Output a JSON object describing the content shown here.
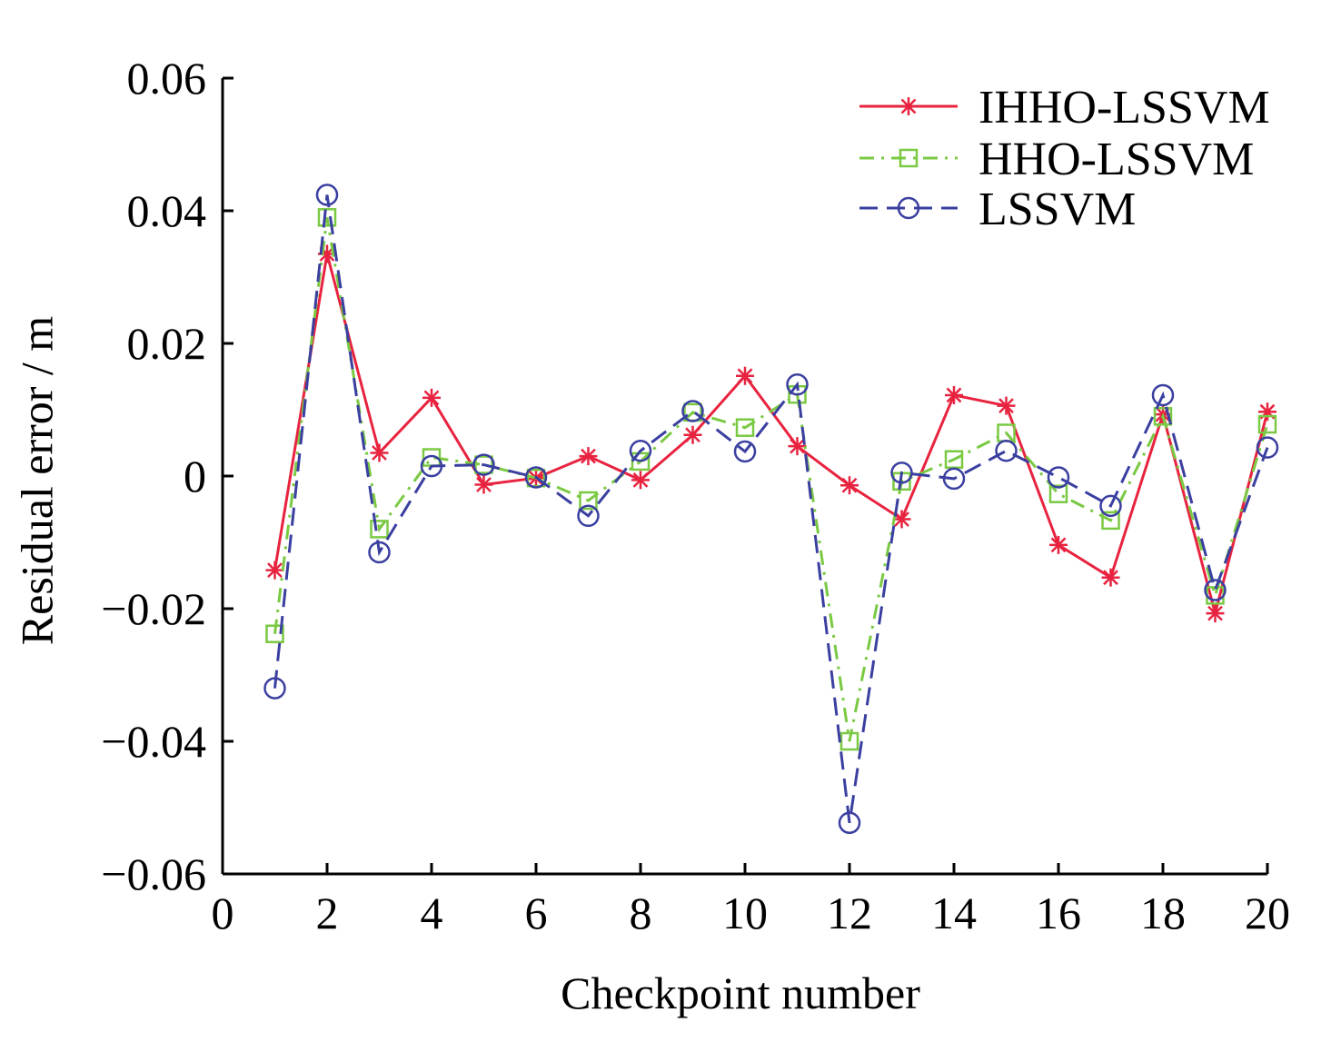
{
  "chart_data": {
    "type": "line",
    "title": "",
    "xlabel": "Checkpoint number",
    "ylabel": "Residual error / m",
    "xlim": [
      0,
      20
    ],
    "ylim": [
      -0.06,
      0.06
    ],
    "xticks": [
      0,
      2,
      4,
      6,
      8,
      10,
      12,
      14,
      16,
      18,
      20
    ],
    "xtick_labels": [
      "0",
      "2",
      "4",
      "6",
      "8",
      "10",
      "12",
      "14",
      "16",
      "18",
      "20"
    ],
    "yticks": [
      0.06,
      0.04,
      0.02,
      0,
      -0.02,
      -0.04,
      -0.06
    ],
    "ytick_labels": [
      "0.06",
      "0.04",
      "0.02",
      "0",
      "−0.02",
      "−0.04",
      "−0.06"
    ],
    "grid": false,
    "legend_position": "top-right",
    "x": [
      1,
      2,
      3,
      4,
      5,
      6,
      7,
      8,
      9,
      10,
      11,
      12,
      13,
      14,
      15,
      16,
      17,
      18,
      19,
      20
    ],
    "series": [
      {
        "name": "IHHO-LSSVM",
        "color": "#e8233f",
        "marker": "asterisk",
        "line_style": "solid",
        "values": [
          -0.0142,
          0.0335,
          0.0035,
          0.0118,
          -0.0013,
          -0.0003,
          0.003,
          -0.0006,
          0.0062,
          0.0151,
          0.0045,
          -0.0014,
          -0.0065,
          0.0122,
          0.0106,
          -0.0104,
          -0.0153,
          0.0093,
          -0.0207,
          0.0097
        ]
      },
      {
        "name": "HHO-LSSVM",
        "color": "#7ac943",
        "marker": "square",
        "line_style": "dashdot",
        "values": [
          -0.0238,
          0.039,
          -0.008,
          0.0028,
          0.0017,
          -0.0003,
          -0.0037,
          0.0022,
          0.0096,
          0.0073,
          0.0123,
          -0.04,
          -0.0008,
          0.0025,
          0.0065,
          -0.0027,
          -0.0067,
          0.009,
          -0.018,
          0.0078
        ]
      },
      {
        "name": "LSSVM",
        "color": "#3a3fa0",
        "marker": "circle",
        "line_style": "dashed",
        "values": [
          -0.032,
          0.0424,
          -0.0115,
          0.0015,
          0.0017,
          -0.0002,
          -0.006,
          0.0038,
          0.0098,
          0.0037,
          0.0138,
          -0.0523,
          0.0005,
          -0.0004,
          0.0038,
          -0.0002,
          -0.0045,
          0.0122,
          -0.0172,
          0.0043
        ]
      }
    ]
  }
}
